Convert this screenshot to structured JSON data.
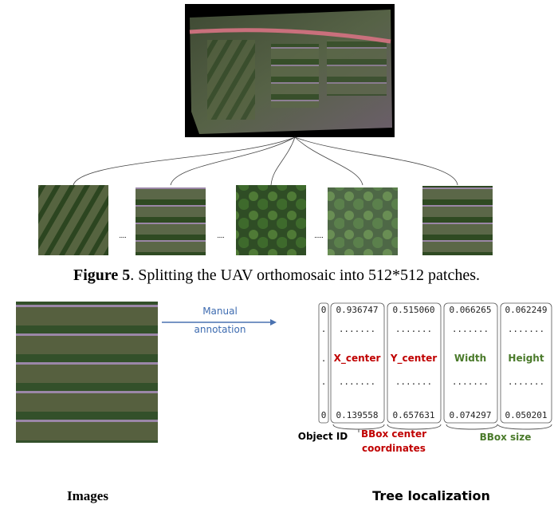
{
  "caption": {
    "label": "Figure 5",
    "text": ". Splitting the UAV orthomosaic into 512*512 patches."
  },
  "patch_separators": [
    "....",
    "....",
    "....."
  ],
  "annotation_arrow": {
    "lines": [
      "Manual",
      "annotation"
    ]
  },
  "table": {
    "rows": [
      [
        "0",
        "0.936747",
        "0.515060",
        "0.066265",
        "0.062249"
      ],
      [
        ".",
        ".......",
        ".......",
        ".......",
        "......."
      ],
      [
        ".",
        "X_center",
        "Y_center",
        "Width",
        "Height"
      ],
      [
        ".",
        ".......",
        ".......",
        ".......",
        "......."
      ],
      [
        "0",
        "0.139558",
        "0.657631",
        "0.074297",
        "0.050201"
      ]
    ]
  },
  "brace_labels": {
    "object_id": "Object ID",
    "center": [
      "BBox center",
      "coordinates"
    ],
    "size": "BBox size"
  },
  "bottom_labels": {
    "images": "Images",
    "localization": "Tree localization"
  }
}
